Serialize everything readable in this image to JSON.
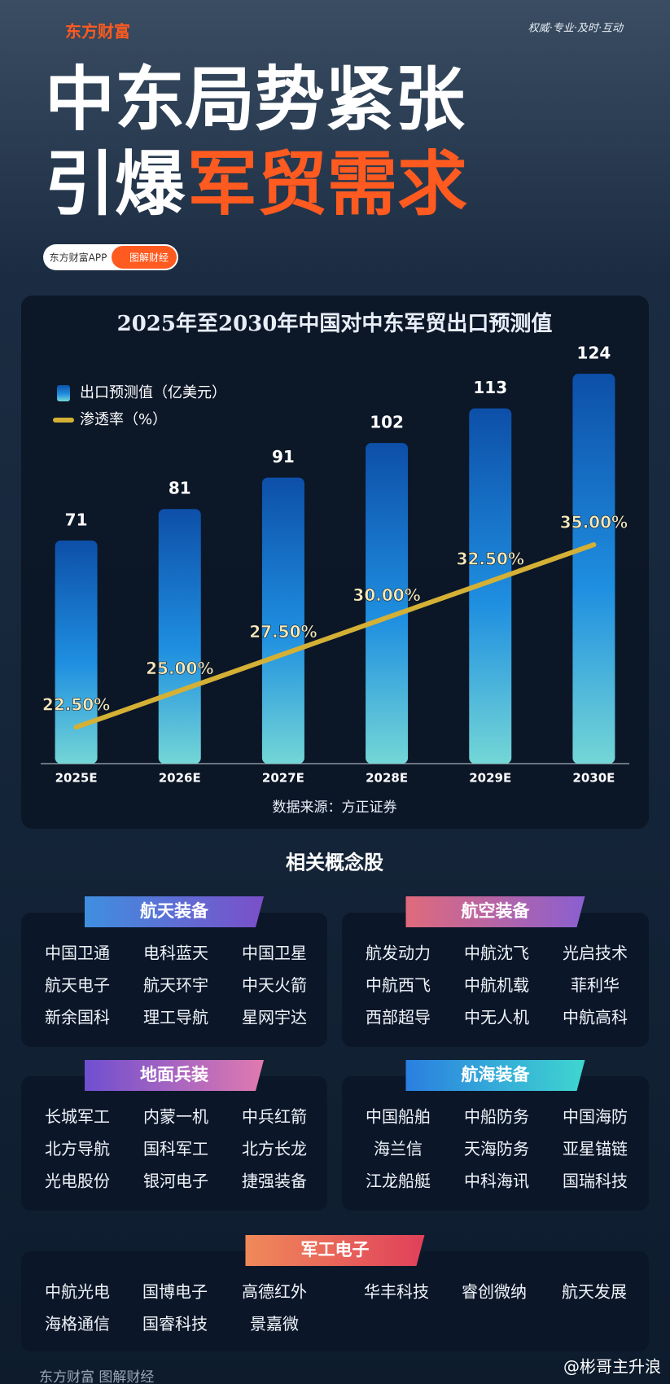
{
  "header": {
    "brand": "东方财富",
    "slogan": "权威·专业·及时·互动",
    "title_line1": "中东局势紧张",
    "title_line2_white": "引爆",
    "title_line2_orange": "军贸需求",
    "app_label": "东方财富APP",
    "tag_label": "图解财经"
  },
  "chart_data": {
    "type": "bar",
    "title": "2025年至2030年中国对中东军贸出口预测值",
    "categories": [
      "2025E",
      "2026E",
      "2027E",
      "2028E",
      "2029E",
      "2030E"
    ],
    "series": [
      {
        "name": "出口预测值（亿美元）",
        "type": "bar",
        "color": "#0d4fa8",
        "values": [
          71,
          81,
          91,
          102,
          113,
          124
        ]
      },
      {
        "name": "渗透率（%）",
        "type": "line",
        "axis": "y2",
        "color": "#d4b035",
        "values": [
          22.5,
          25,
          27.5,
          30,
          32.5,
          35
        ],
        "value_labels": [
          "22.50%",
          "25.00%",
          "27.50%",
          "30.00%",
          "32.50%",
          "35.00%"
        ]
      }
    ],
    "ylim": [
      0,
      130
    ],
    "y2lim": [
      20,
      48
    ],
    "source": "数据来源：方正证券"
  },
  "concepts": {
    "title": "相关概念股",
    "groups": [
      {
        "name": "航天装备",
        "stocks": [
          "中国卫通",
          "电科蓝天",
          "中国卫星",
          "航天电子",
          "航天环宇",
          "中天火箭",
          "新余国科",
          "理工导航",
          "星网宇达"
        ]
      },
      {
        "name": "航空装备",
        "stocks": [
          "航发动力",
          "中航沈飞",
          "光启技术",
          "中航西飞",
          "中航机载",
          "菲利华",
          "西部超导",
          "中无人机",
          "中航高科"
        ]
      },
      {
        "name": "地面兵装",
        "stocks": [
          "长城军工",
          "内蒙一机",
          "中兵红箭",
          "北方导航",
          "国科军工",
          "北方长龙",
          "光电股份",
          "银河电子",
          "捷强装备"
        ]
      },
      {
        "name": "航海装备",
        "stocks": [
          "中国船舶",
          "中船防务",
          "中国海防",
          "海兰信",
          "天海防务",
          "亚星锚链",
          "江龙船艇",
          "中科海讯",
          "国瑞科技"
        ]
      },
      {
        "name": "军工电子",
        "stocks": [
          "中航光电",
          "国博电子",
          "高德红外",
          "华丰科技",
          "睿创微纳",
          "航天发展",
          "海格通信",
          "国睿科技",
          "景嘉微"
        ]
      }
    ]
  },
  "footer": {
    "brand": "东方财富 图解财经",
    "weibo": "@彬哥主升浪"
  }
}
